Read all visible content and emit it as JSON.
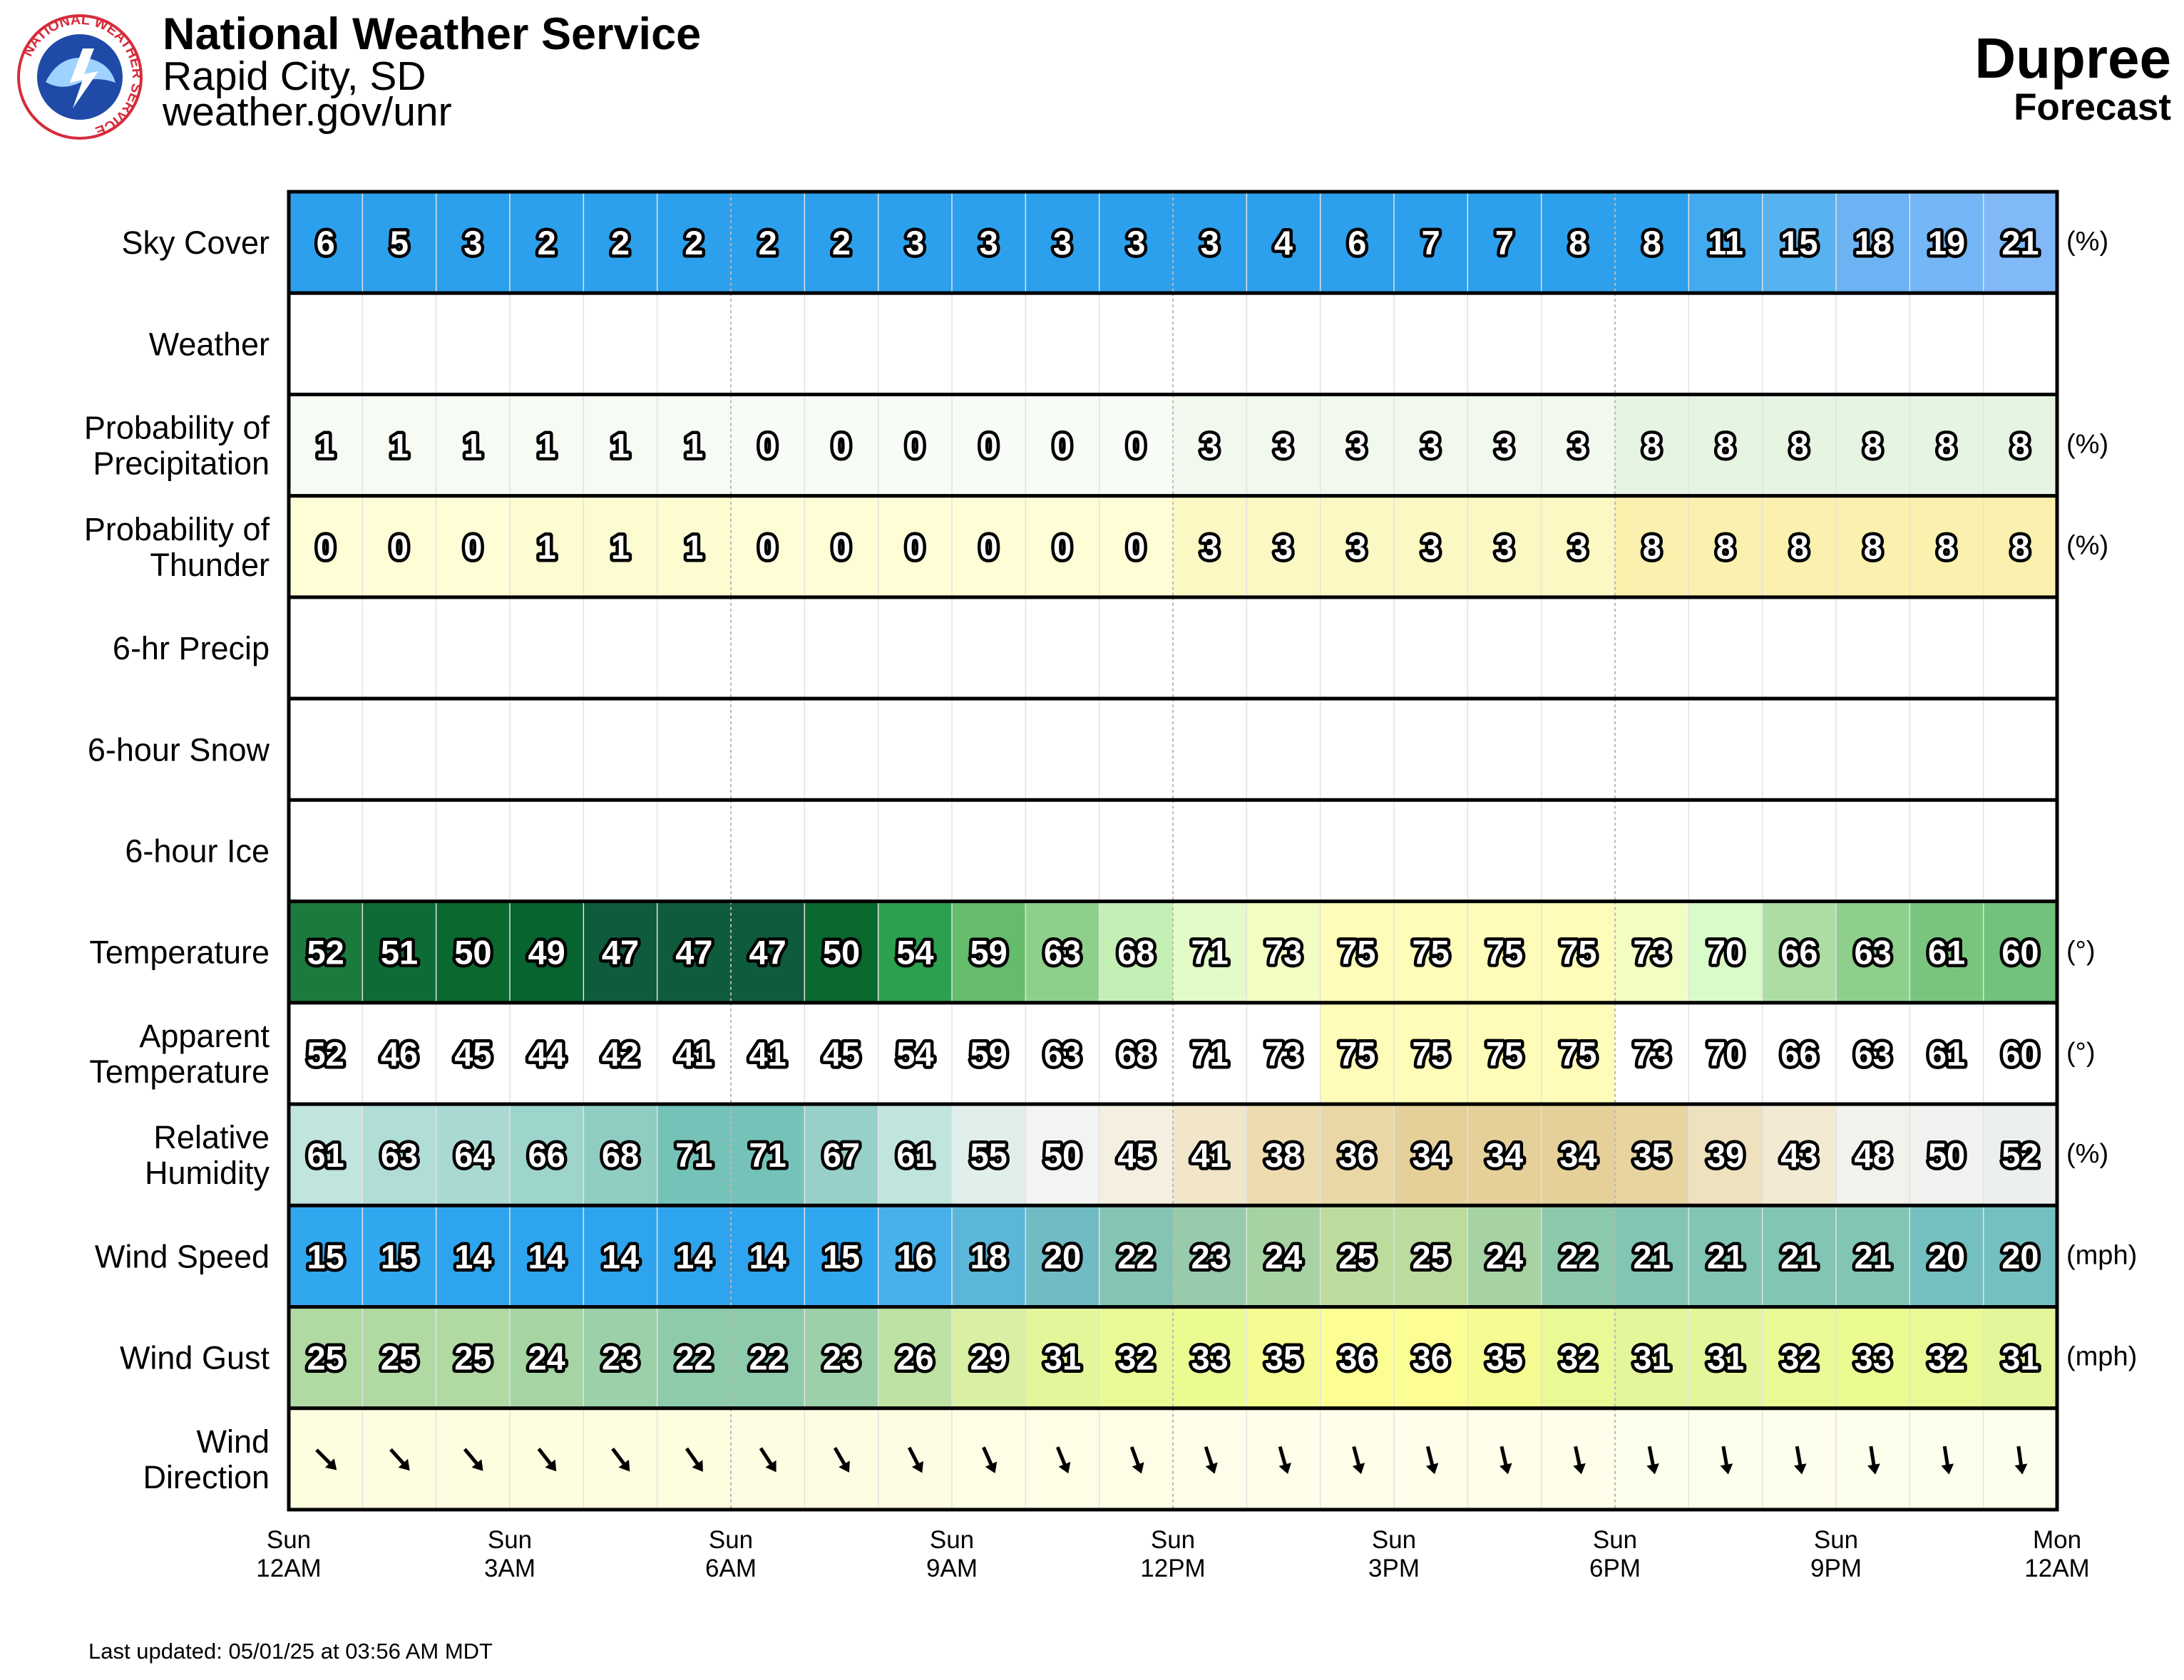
{
  "header": {
    "title": "National Weather Service",
    "office": "Rapid City, SD",
    "url": "weather.gov/unr",
    "logo_text": "NATIONAL WEATHER SERVICE"
  },
  "location": {
    "name": "Dupree",
    "subtitle": "Forecast"
  },
  "footer": {
    "updated": "Last updated: 05/01/25 at 03:56 AM MDT"
  },
  "chart_data": {
    "type": "table",
    "columns": 24,
    "x_ticks": [
      {
        "day": "Sun",
        "time": "12AM"
      },
      {
        "day": "Sun",
        "time": "3AM"
      },
      {
        "day": "Sun",
        "time": "6AM"
      },
      {
        "day": "Sun",
        "time": "9AM"
      },
      {
        "day": "Sun",
        "time": "12PM"
      },
      {
        "day": "Sun",
        "time": "3PM"
      },
      {
        "day": "Sun",
        "time": "6PM"
      },
      {
        "day": "Sun",
        "time": "9PM"
      },
      {
        "day": "Mon",
        "time": "12AM"
      }
    ],
    "rows": [
      {
        "label": [
          "Sky Cover"
        ],
        "unit": "(%)",
        "values": [
          6,
          5,
          3,
          2,
          2,
          2,
          2,
          2,
          3,
          3,
          3,
          3,
          3,
          4,
          6,
          7,
          7,
          8,
          8,
          11,
          15,
          18,
          19,
          21
        ],
        "colors": [
          "#2ca0ed",
          "#2ca0ed",
          "#2ca0ed",
          "#2ca0ed",
          "#2ca0ed",
          "#2ca0ed",
          "#2ca0ed",
          "#2ca0ed",
          "#2ca0ed",
          "#2ca0ed",
          "#2ca0ed",
          "#2ca0ed",
          "#2ca0ed",
          "#2ca0ed",
          "#2ca0ed",
          "#2ca0ed",
          "#2ca0ed",
          "#2ca0ed",
          "#2ca0ed",
          "#42aaef",
          "#57b2f0",
          "#6cb3f3",
          "#74b6f6",
          "#80b8f8"
        ]
      },
      {
        "label": [
          "Weather"
        ],
        "unit": "",
        "values": [],
        "colors": []
      },
      {
        "label": [
          "Probability of",
          "Precipitation"
        ],
        "unit": "(%)",
        "values": [
          1,
          1,
          1,
          1,
          1,
          1,
          0,
          0,
          0,
          0,
          0,
          0,
          3,
          3,
          3,
          3,
          3,
          3,
          8,
          8,
          8,
          8,
          8,
          8
        ],
        "colors": [
          "#f6fbf4",
          "#f6fbf4",
          "#f6fbf4",
          "#f6fbf4",
          "#f6fbf4",
          "#f6fbf4",
          "#f8fcf6",
          "#f8fcf6",
          "#f8fcf6",
          "#f8fcf6",
          "#f8fcf6",
          "#f8fcf6",
          "#f1f9ee",
          "#f1f9ee",
          "#f1f9ee",
          "#f1f9ee",
          "#f1f9ee",
          "#f1f9ee",
          "#e6f4e2",
          "#e6f4e2",
          "#e6f4e2",
          "#e6f4e2",
          "#e6f4e2",
          "#e6f4e2"
        ]
      },
      {
        "label": [
          "Probability of",
          "Thunder"
        ],
        "unit": "(%)",
        "values": [
          0,
          0,
          0,
          1,
          1,
          1,
          0,
          0,
          0,
          0,
          0,
          0,
          3,
          3,
          3,
          3,
          3,
          3,
          8,
          8,
          8,
          8,
          8,
          8
        ],
        "colors": [
          "#fefdd6",
          "#fefdd6",
          "#fefdd6",
          "#fdfcd1",
          "#fdfcd1",
          "#fdfcd1",
          "#fefdd6",
          "#fefdd6",
          "#fefdd6",
          "#fefdd6",
          "#fefdd6",
          "#fefdd6",
          "#fcf8c4",
          "#fcf8c4",
          "#fcf8c4",
          "#fcf8c4",
          "#fcf8c4",
          "#fcf8c4",
          "#fbf0ad",
          "#fbf0ad",
          "#fbf0ad",
          "#fbf0ad",
          "#fbf0ad",
          "#fbf0ad"
        ]
      },
      {
        "label": [
          "6-hr Precip"
        ],
        "unit": "",
        "values": [],
        "colors": []
      },
      {
        "label": [
          "6-hour Snow"
        ],
        "unit": "",
        "values": [],
        "colors": []
      },
      {
        "label": [
          "6-hour Ice"
        ],
        "unit": "",
        "values": [],
        "colors": []
      },
      {
        "label": [
          "Temperature"
        ],
        "unit": "(°)",
        "values": [
          52,
          51,
          50,
          49,
          47,
          47,
          47,
          50,
          54,
          59,
          63,
          68,
          71,
          73,
          75,
          75,
          75,
          75,
          73,
          70,
          66,
          63,
          61,
          60
        ],
        "colors": [
          "#1b7a3d",
          "#0d6b35",
          "#09692f",
          "#07632f",
          "#0f5c3c",
          "#0f5c3c",
          "#0f5c3c",
          "#09692f",
          "#2ca04e",
          "#65bc6b",
          "#8ecf8c",
          "#c4efb4",
          "#e3fbc7",
          "#f2fdc3",
          "#fefcb8",
          "#fefcb8",
          "#fefcb8",
          "#fefcb8",
          "#f2fdc3",
          "#d8fbc9",
          "#acdea4",
          "#8ecf8c",
          "#7ac57e",
          "#73c27b"
        ]
      },
      {
        "label": [
          "Apparent",
          "Temperature"
        ],
        "unit": "(°)",
        "values": [
          52,
          46,
          45,
          44,
          42,
          41,
          41,
          45,
          54,
          59,
          63,
          68,
          71,
          73,
          75,
          75,
          75,
          75,
          73,
          70,
          66,
          63,
          61,
          60
        ],
        "colors": [
          "#ffffff",
          "#ffffff",
          "#ffffff",
          "#ffffff",
          "#ffffff",
          "#ffffff",
          "#ffffff",
          "#ffffff",
          "#ffffff",
          "#ffffff",
          "#ffffff",
          "#ffffff",
          "#ffffff",
          "#ffffff",
          "#fefcb8",
          "#fefcb8",
          "#fefcb8",
          "#fefcb8",
          "#ffffff",
          "#ffffff",
          "#ffffff",
          "#ffffff",
          "#ffffff",
          "#ffffff"
        ]
      },
      {
        "label": [
          "Relative",
          "Humidity"
        ],
        "unit": "(%)",
        "values": [
          61,
          63,
          64,
          66,
          68,
          71,
          71,
          67,
          61,
          55,
          50,
          45,
          41,
          38,
          36,
          34,
          34,
          34,
          35,
          39,
          43,
          48,
          50,
          52
        ],
        "colors": [
          "#c0e4de",
          "#b1ddd7",
          "#aad9d3",
          "#9dd4cc",
          "#8fcdc3",
          "#75c3b8",
          "#75c3b8",
          "#97d0c8",
          "#c0e4de",
          "#e1efec",
          "#f3f3f1",
          "#f4efe1",
          "#f1e6c9",
          "#ecdcb0",
          "#e9d7a6",
          "#e6d09a",
          "#e6d09a",
          "#e6d09a",
          "#e8d4a0",
          "#eee1bd",
          "#f2ead3",
          "#f2f1ec",
          "#f0f2f0",
          "#ebf0ef"
        ]
      },
      {
        "label": [
          "Wind Speed"
        ],
        "unit": "(mph)",
        "values": [
          15,
          15,
          14,
          14,
          14,
          14,
          14,
          15,
          16,
          18,
          20,
          22,
          23,
          24,
          25,
          25,
          24,
          22,
          21,
          21,
          21,
          21,
          20,
          20
        ],
        "colors": [
          "#31a7f0",
          "#31a7f0",
          "#2ea4ee",
          "#2ea4ee",
          "#2ea4ee",
          "#2ea4ee",
          "#2ea4ee",
          "#31a7f0",
          "#48b0ea",
          "#5cb6d8",
          "#70bcc5",
          "#85c4b4",
          "#97cbac",
          "#a6d2a4",
          "#bcdc9e",
          "#bcdc9e",
          "#a6d2a4",
          "#8cc9ab",
          "#82c5b5",
          "#82c5b5",
          "#82c5b5",
          "#82c5b5",
          "#74c0c1",
          "#74c0c1"
        ]
      },
      {
        "label": [
          "Wind Gust"
        ],
        "unit": "(mph)",
        "values": [
          25,
          25,
          25,
          24,
          23,
          22,
          22,
          23,
          26,
          29,
          31,
          32,
          33,
          35,
          36,
          36,
          35,
          32,
          31,
          31,
          32,
          33,
          32,
          31
        ],
        "colors": [
          "#b1d9a2",
          "#b1d9a2",
          "#b1d9a2",
          "#a6d4a2",
          "#9bd0a8",
          "#8ecbab",
          "#8ecbab",
          "#9bd0a8",
          "#bee2a3",
          "#d9f0a4",
          "#e3f69a",
          "#e8f996",
          "#ecfa92",
          "#f6fc92",
          "#fcfe94",
          "#fcfe94",
          "#f6fc92",
          "#e8f996",
          "#e3f69a",
          "#e3f69a",
          "#e8f996",
          "#ecfa92",
          "#e8f996",
          "#e3f69a"
        ]
      },
      {
        "label": [
          "Wind",
          "Direction"
        ],
        "unit": "",
        "arrows": [
          315,
          318,
          320,
          322,
          323,
          325,
          327,
          330,
          333,
          336,
          338,
          340,
          342,
          344,
          345,
          346,
          347,
          348,
          349,
          350,
          350,
          351,
          351,
          352
        ],
        "colors": [
          "#fefde0",
          "#fefde0",
          "#fefde0",
          "#fefde0",
          "#fefde0",
          "#fefde0",
          "#fefde3",
          "#fefde3",
          "#fefde3",
          "#fefee7",
          "#fefee7",
          "#fefee7",
          "#fefeea",
          "#fefeea",
          "#fefeea",
          "#fefeea",
          "#fefeea",
          "#fefeea",
          "#fefeec",
          "#fefeec",
          "#fefeec",
          "#fefeec",
          "#fefeec",
          "#fefeec"
        ]
      }
    ]
  }
}
